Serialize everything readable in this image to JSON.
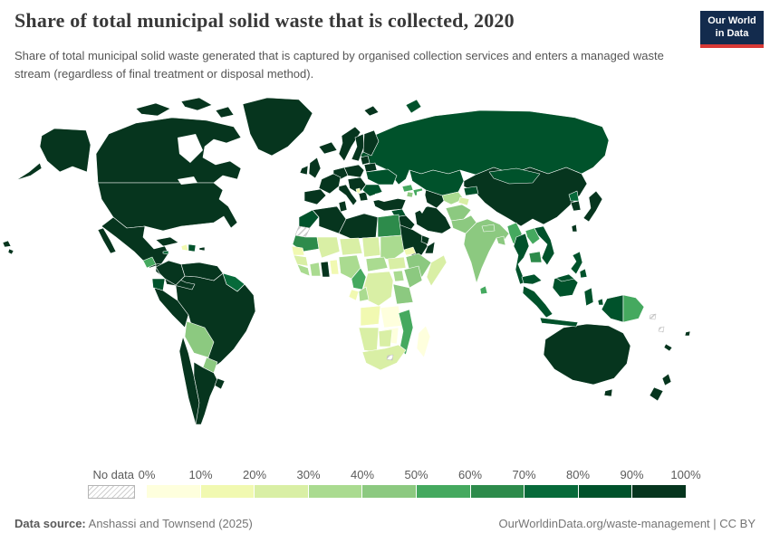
{
  "header": {
    "title": "Share of total municipal solid waste that is collected, 2020",
    "subtitle": "Share of total municipal solid waste generated that is captured by organised collection services and enters a managed waste stream (regardless of final treatment or disposal method).",
    "logo": {
      "line1": "Our World",
      "line2": "in Data",
      "bg_color": "#132b4d",
      "accent_color": "#d83936"
    }
  },
  "legend": {
    "no_data_label": "No data",
    "tick_labels": [
      "0%",
      "10%",
      "20%",
      "30%",
      "40%",
      "50%",
      "60%",
      "70%",
      "80%",
      "90%",
      "100%"
    ],
    "bin_colors": [
      "#feffdd",
      "#f1f9b1",
      "#d9efa5",
      "#aadb90",
      "#8cc980",
      "#45a95f",
      "#2d8b4b",
      "#076a3a",
      "#00522b",
      "#06351e"
    ]
  },
  "footer": {
    "source_label": "Data source:",
    "source_value": " Anshassi and Townsend (2025)",
    "right_text": "OurWorldinData.org/waste-management | CC BY"
  },
  "chart_data": {
    "type": "choropleth",
    "title": "Share of total municipal solid waste that is collected",
    "year": 2020,
    "unit": "%",
    "bin_edges": [
      0,
      10,
      20,
      30,
      40,
      50,
      60,
      70,
      80,
      90,
      100
    ],
    "legend_position": "bottom",
    "countries": [
      {
        "id": "canada",
        "name": "Canada",
        "value": 95
      },
      {
        "id": "united-states",
        "name": "United States",
        "value": 95
      },
      {
        "id": "greenland",
        "name": "Greenland",
        "value": 95
      },
      {
        "id": "mexico",
        "name": "Mexico",
        "value": 95
      },
      {
        "id": "guatemala",
        "name": "Guatemala",
        "value": 55
      },
      {
        "id": "honduras-nicaragua",
        "name": "Honduras & Nicaragua",
        "value": 90
      },
      {
        "id": "costa-rica-panama",
        "name": "Costa Rica & Panama",
        "value": 95
      },
      {
        "id": "cuba",
        "name": "Cuba",
        "value": 95
      },
      {
        "id": "haiti",
        "name": "Haiti",
        "value": 12
      },
      {
        "id": "dominican-republic",
        "name": "Dominican Republic",
        "value": 85
      },
      {
        "id": "jamaica",
        "name": "Jamaica",
        "value": 75
      },
      {
        "id": "puerto-rico",
        "name": "Puerto Rico",
        "value": 95
      },
      {
        "id": "colombia",
        "name": "Colombia",
        "value": 95
      },
      {
        "id": "venezuela",
        "name": "Venezuela",
        "value": 90
      },
      {
        "id": "guyanas",
        "name": "Guyana & Suriname",
        "value": 78
      },
      {
        "id": "ecuador",
        "name": "Ecuador",
        "value": 85
      },
      {
        "id": "peru",
        "name": "Peru",
        "value": 95
      },
      {
        "id": "brazil",
        "name": "Brazil",
        "value": 95
      },
      {
        "id": "bolivia",
        "name": "Bolivia",
        "value": 45
      },
      {
        "id": "paraguay",
        "name": "Paraguay",
        "value": 45
      },
      {
        "id": "chile",
        "name": "Chile",
        "value": 95
      },
      {
        "id": "argentina",
        "name": "Argentina",
        "value": 95
      },
      {
        "id": "uruguay",
        "name": "Uruguay",
        "value": 95
      },
      {
        "id": "iceland",
        "name": "Iceland",
        "value": 97
      },
      {
        "id": "united-kingdom",
        "name": "United Kingdom",
        "value": 99
      },
      {
        "id": "ireland",
        "name": "Ireland",
        "value": 97
      },
      {
        "id": "norway",
        "name": "Norway",
        "value": 98
      },
      {
        "id": "sweden",
        "name": "Sweden",
        "value": 99
      },
      {
        "id": "finland",
        "name": "Finland",
        "value": 99
      },
      {
        "id": "denmark",
        "name": "Denmark",
        "value": 99
      },
      {
        "id": "germany",
        "name": "Germany",
        "value": 99
      },
      {
        "id": "france",
        "name": "France",
        "value": 99
      },
      {
        "id": "iberia",
        "name": "Spain & Portugal",
        "value": 98
      },
      {
        "id": "italy",
        "name": "Italy",
        "value": 97
      },
      {
        "id": "central-europe",
        "name": "Poland & Central Europe",
        "value": 97
      },
      {
        "id": "balkans",
        "name": "Balkans",
        "value": 90
      },
      {
        "id": "albania",
        "name": "Albania",
        "value": 15
      },
      {
        "id": "greece",
        "name": "Greece",
        "value": 95
      },
      {
        "id": "baltics",
        "name": "Baltic states",
        "value": 97
      },
      {
        "id": "belarus",
        "name": "Belarus",
        "value": 90
      },
      {
        "id": "ukraine",
        "name": "Ukraine",
        "value": 85
      },
      {
        "id": "romania-bulgaria",
        "name": "Romania & Bulgaria",
        "value": 82
      },
      {
        "id": "russia",
        "name": "Russia",
        "value": 82
      },
      {
        "id": "kazakhstan",
        "name": "Kazakhstan",
        "value": 82
      },
      {
        "id": "mongolia",
        "name": "Mongolia",
        "value": 85
      },
      {
        "id": "china",
        "name": "China",
        "value": 97
      },
      {
        "id": "north-korea",
        "name": "North Korea",
        "value": 70
      },
      {
        "id": "south-korea",
        "name": "South Korea",
        "value": 99
      },
      {
        "id": "japan",
        "name": "Japan",
        "value": 99
      },
      {
        "id": "taiwan",
        "name": "Taiwan",
        "value": 99
      },
      {
        "id": "turkey",
        "name": "Turkey",
        "value": 95
      },
      {
        "id": "georgia",
        "name": "Georgia",
        "value": 50
      },
      {
        "id": "azerbaijan",
        "name": "Azerbaijan",
        "value": 50
      },
      {
        "id": "armenia",
        "name": "Armenia",
        "value": 42
      },
      {
        "id": "syria",
        "name": "Syria",
        "value": 85
      },
      {
        "id": "iraq",
        "name": "Iraq",
        "value": 95
      },
      {
        "id": "iran",
        "name": "Iran",
        "value": 95
      },
      {
        "id": "jordan-israel",
        "name": "Jordan & Israel",
        "value": 95
      },
      {
        "id": "saudi-arabia",
        "name": "Saudi Arabia",
        "value": 97
      },
      {
        "id": "yemen",
        "name": "Yemen",
        "value": 8
      },
      {
        "id": "oman",
        "name": "Oman",
        "value": 95
      },
      {
        "id": "gulf-states",
        "name": "Gulf states",
        "value": 97
      },
      {
        "id": "uzbekistan",
        "name": "Uzbekistan",
        "value": 30
      },
      {
        "id": "turkmenistan",
        "name": "Turkmenistan",
        "value": 90
      },
      {
        "id": "kyrgyzstan",
        "name": "Kyrgyzstan",
        "value": 80
      },
      {
        "id": "tajikistan",
        "name": "Tajikistan",
        "value": 25
      },
      {
        "id": "afghanistan",
        "name": "Afghanistan",
        "value": 45
      },
      {
        "id": "pakistan",
        "name": "Pakistan",
        "value": 45
      },
      {
        "id": "india",
        "name": "India",
        "value": 48
      },
      {
        "id": "nepal",
        "name": "Nepal",
        "value": 45
      },
      {
        "id": "bangladesh",
        "name": "Bangladesh",
        "value": 48
      },
      {
        "id": "sri-lanka",
        "name": "Sri Lanka",
        "value": 50
      },
      {
        "id": "myanmar",
        "name": "Myanmar",
        "value": 50
      },
      {
        "id": "thailand",
        "name": "Thailand",
        "value": 85
      },
      {
        "id": "laos",
        "name": "Laos",
        "value": 52
      },
      {
        "id": "vietnam",
        "name": "Vietnam",
        "value": 88
      },
      {
        "id": "cambodia",
        "name": "Cambodia",
        "value": 60
      },
      {
        "id": "malaysia",
        "name": "Malaysia",
        "value": 88
      },
      {
        "id": "indonesia",
        "name": "Indonesia",
        "value": 85
      },
      {
        "id": "philippines",
        "name": "Philippines",
        "value": 85
      },
      {
        "id": "papua-new-guinea",
        "name": "Papua New Guinea",
        "value": 55
      },
      {
        "id": "new-caledonia",
        "name": "New Caledonia",
        "value": 95
      },
      {
        "id": "fiji",
        "name": "Fiji",
        "value": 95
      },
      {
        "id": "solomon-islands",
        "name": "Solomon Islands",
        "value": null
      },
      {
        "id": "vanuatu",
        "name": "Vanuatu",
        "value": null
      },
      {
        "id": "australia",
        "name": "Australia",
        "value": 95
      },
      {
        "id": "new-zealand",
        "name": "New Zealand",
        "value": 95
      },
      {
        "id": "morocco",
        "name": "Morocco",
        "value": 85
      },
      {
        "id": "western-sahara",
        "name": "Western Sahara",
        "value": null
      },
      {
        "id": "algeria",
        "name": "Algeria",
        "value": 97
      },
      {
        "id": "tunisia",
        "name": "Tunisia",
        "value": 95
      },
      {
        "id": "libya",
        "name": "Libya",
        "value": 97
      },
      {
        "id": "egypt",
        "name": "Egypt",
        "value": 65
      },
      {
        "id": "mauritania",
        "name": "Mauritania",
        "value": 65
      },
      {
        "id": "mali",
        "name": "Mali",
        "value": 25
      },
      {
        "id": "niger",
        "name": "Niger",
        "value": 25
      },
      {
        "id": "chad",
        "name": "Chad",
        "value": 28
      },
      {
        "id": "sudan",
        "name": "Sudan",
        "value": 32
      },
      {
        "id": "eritrea",
        "name": "Eritrea",
        "value": 10
      },
      {
        "id": "ethiopia",
        "name": "Ethiopia",
        "value": 45
      },
      {
        "id": "somalia",
        "name": "Somalia",
        "value": 28
      },
      {
        "id": "senegal",
        "name": "Senegal",
        "value": 15
      },
      {
        "id": "guinea",
        "name": "Guinea",
        "value": 28
      },
      {
        "id": "sierra-leone-liberia",
        "name": "Sierra Leone & Liberia",
        "value": 32
      },
      {
        "id": "ivory-coast",
        "name": "Côte d'Ivoire",
        "value": 32
      },
      {
        "id": "ghana",
        "name": "Ghana",
        "value": 95
      },
      {
        "id": "togo-benin",
        "name": "Togo & Benin",
        "value": 18
      },
      {
        "id": "nigeria",
        "name": "Nigeria",
        "value": 30
      },
      {
        "id": "cameroon",
        "name": "Cameroon",
        "value": 58
      },
      {
        "id": "central-african-republic",
        "name": "Central African Republic",
        "value": 30
      },
      {
        "id": "south-sudan",
        "name": "South Sudan",
        "value": 28
      },
      {
        "id": "uganda",
        "name": "Uganda",
        "value": 30
      },
      {
        "id": "kenya",
        "name": "Kenya",
        "value": 45
      },
      {
        "id": "dr-congo",
        "name": "Democratic Republic of Congo",
        "value": 28
      },
      {
        "id": "gabon",
        "name": "Gabon",
        "value": 10
      },
      {
        "id": "congo",
        "name": "Congo",
        "value": 35
      },
      {
        "id": "tanzania",
        "name": "Tanzania",
        "value": 42
      },
      {
        "id": "angola",
        "name": "Angola",
        "value": 18
      },
      {
        "id": "zambia",
        "name": "Zambia",
        "value": 8
      },
      {
        "id": "zimbabwe",
        "name": "Zimbabwe",
        "value": 6
      },
      {
        "id": "malawi",
        "name": "Malawi",
        "value": 42
      },
      {
        "id": "mozambique",
        "name": "Mozambique",
        "value": 55
      },
      {
        "id": "namibia",
        "name": "Namibia",
        "value": 20
      },
      {
        "id": "botswana",
        "name": "Botswana",
        "value": 22
      },
      {
        "id": "south-africa",
        "name": "South Africa",
        "value": 24
      },
      {
        "id": "lesotho",
        "name": "Lesotho",
        "value": null
      },
      {
        "id": "madagascar",
        "name": "Madagascar",
        "value": 5
      }
    ]
  }
}
